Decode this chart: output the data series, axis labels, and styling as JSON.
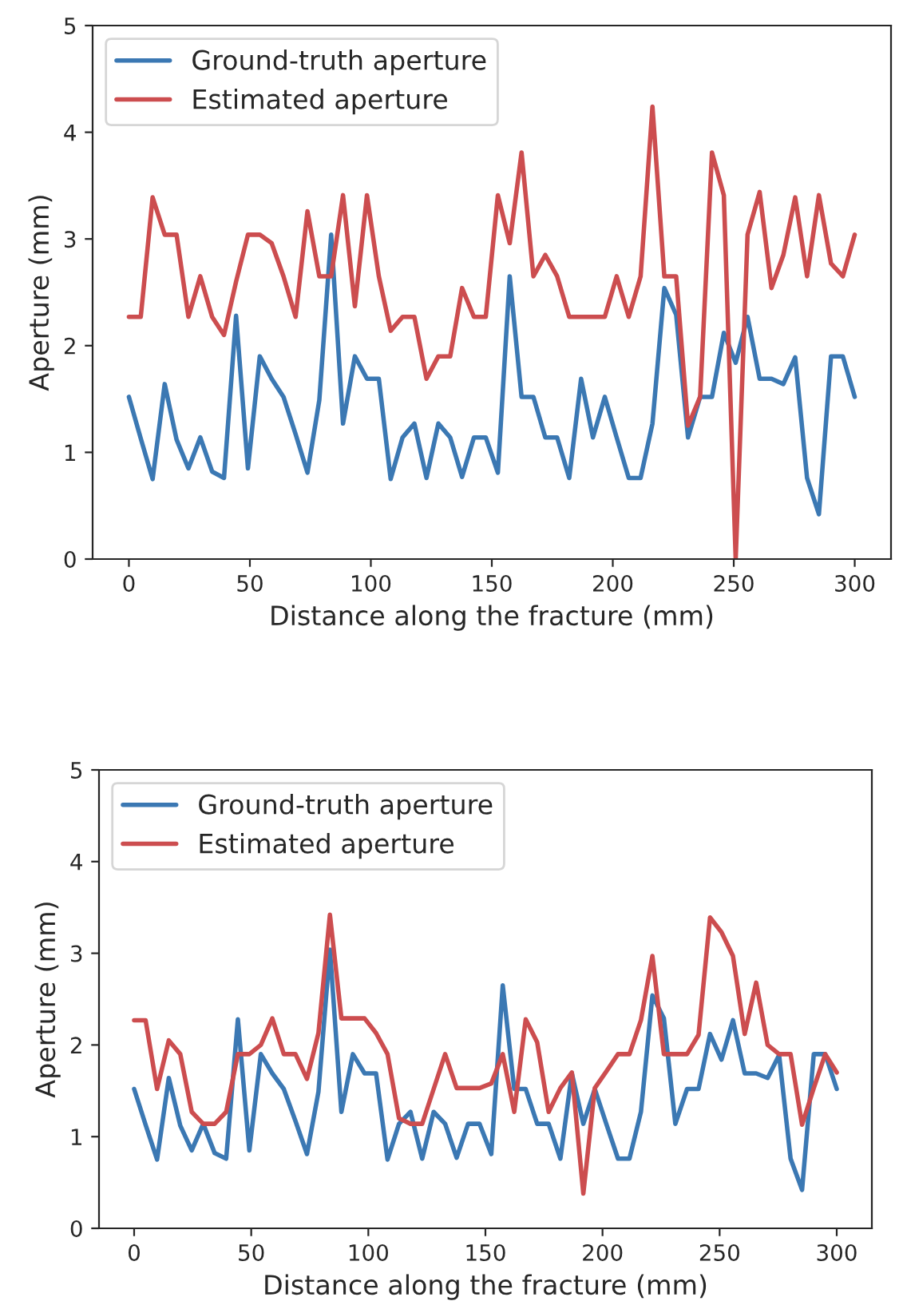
{
  "chart_data": [
    {
      "type": "line",
      "xlabel": "Distance along the fracture (mm)",
      "ylabel": "Aperture (mm)",
      "xlim": [
        -15,
        315
      ],
      "ylim": [
        0,
        5
      ],
      "xticks": [
        0,
        50,
        100,
        150,
        200,
        250,
        300
      ],
      "yticks": [
        0,
        1,
        2,
        3,
        4,
        5
      ],
      "grid": false,
      "legend": "top left",
      "line_style": "solid",
      "marker": "none",
      "x": [
        0,
        4.9,
        9.8,
        14.8,
        19.7,
        24.6,
        29.5,
        34.4,
        39.3,
        44.3,
        49.2,
        54.1,
        59.0,
        63.9,
        68.9,
        73.8,
        78.7,
        83.6,
        88.5,
        93.4,
        98.4,
        103.3,
        108.2,
        113.1,
        118.0,
        123.0,
        127.9,
        132.8,
        137.7,
        142.6,
        147.5,
        152.5,
        157.4,
        162.3,
        167.2,
        172.1,
        177.0,
        182.0,
        186.9,
        191.8,
        196.7,
        201.6,
        206.6,
        211.5,
        216.4,
        221.3,
        226.2,
        231.1,
        236.1,
        241.0,
        245.9,
        250.8,
        255.7,
        260.7,
        265.6,
        270.5,
        275.4,
        280.3,
        285.2,
        290.2,
        295.1,
        300
      ],
      "series": [
        {
          "name": "Ground-truth aperture",
          "color": "#3b78b3",
          "values": [
            1.52,
            1.13,
            0.75,
            1.64,
            1.12,
            0.85,
            1.14,
            0.82,
            0.76,
            2.28,
            0.85,
            1.9,
            1.69,
            1.52,
            1.17,
            0.81,
            1.49,
            3.04,
            1.27,
            1.9,
            1.69,
            1.69,
            0.75,
            1.14,
            1.27,
            0.76,
            1.27,
            1.14,
            0.77,
            1.14,
            1.14,
            0.81,
            2.65,
            1.52,
            1.52,
            1.14,
            1.14,
            0.76,
            1.69,
            1.14,
            1.52,
            1.14,
            0.76,
            0.76,
            1.27,
            2.54,
            2.29,
            1.14,
            1.52,
            1.52,
            2.12,
            1.84,
            2.27,
            1.69,
            1.69,
            1.64,
            1.89,
            0.76,
            0.42,
            1.9,
            1.9,
            1.52
          ]
        },
        {
          "name": "Estimated aperture",
          "color": "#cc4d4f",
          "values": [
            2.27,
            2.27,
            3.39,
            3.04,
            3.04,
            2.27,
            2.65,
            2.27,
            2.1,
            2.6,
            3.04,
            3.04,
            2.96,
            2.65,
            2.27,
            3.26,
            2.65,
            2.65,
            3.41,
            2.37,
            3.41,
            2.65,
            2.14,
            2.27,
            2.27,
            1.69,
            1.9,
            1.9,
            2.54,
            2.27,
            2.27,
            3.41,
            2.96,
            3.81,
            2.65,
            2.85,
            2.65,
            2.27,
            2.27,
            2.27,
            2.27,
            2.65,
            2.27,
            2.65,
            4.24,
            2.65,
            2.65,
            1.25,
            1.52,
            3.81,
            3.41,
            0,
            3.04,
            3.44,
            2.54,
            2.85,
            3.39,
            2.65,
            3.41,
            2.77,
            2.65,
            3.04
          ]
        }
      ]
    },
    {
      "type": "line",
      "xlabel": "Distance along the fracture (mm)",
      "ylabel": "Aperture (mm)",
      "xlim": [
        -15,
        315
      ],
      "ylim": [
        0,
        5
      ],
      "xticks": [
        0,
        50,
        100,
        150,
        200,
        250,
        300
      ],
      "yticks": [
        0,
        1,
        2,
        3,
        4,
        5
      ],
      "grid": false,
      "legend": "top left",
      "line_style": "solid",
      "marker": "none",
      "x": [
        0,
        4.9,
        9.8,
        14.8,
        19.7,
        24.6,
        29.5,
        34.4,
        39.3,
        44.3,
        49.2,
        54.1,
        59.0,
        63.9,
        68.9,
        73.8,
        78.7,
        83.6,
        88.5,
        93.4,
        98.4,
        103.3,
        108.2,
        113.1,
        118.0,
        123.0,
        127.9,
        132.8,
        137.7,
        142.6,
        147.5,
        152.5,
        157.4,
        162.3,
        167.2,
        172.1,
        177.0,
        182.0,
        186.9,
        191.8,
        196.7,
        201.6,
        206.6,
        211.5,
        216.4,
        221.3,
        226.2,
        231.1,
        236.1,
        241.0,
        245.9,
        250.8,
        255.7,
        260.7,
        265.6,
        270.5,
        275.4,
        280.3,
        285.2,
        290.2,
        295.1,
        300
      ],
      "series": [
        {
          "name": "Ground-truth aperture",
          "color": "#3b78b3",
          "values": [
            1.52,
            1.13,
            0.75,
            1.64,
            1.12,
            0.85,
            1.14,
            0.82,
            0.76,
            2.28,
            0.85,
            1.9,
            1.69,
            1.52,
            1.17,
            0.81,
            1.49,
            3.04,
            1.27,
            1.9,
            1.69,
            1.69,
            0.75,
            1.14,
            1.27,
            0.76,
            1.27,
            1.14,
            0.77,
            1.14,
            1.14,
            0.81,
            2.65,
            1.52,
            1.52,
            1.14,
            1.14,
            0.76,
            1.69,
            1.14,
            1.52,
            1.14,
            0.76,
            0.76,
            1.27,
            2.54,
            2.29,
            1.14,
            1.52,
            1.52,
            2.12,
            1.84,
            2.27,
            1.69,
            1.69,
            1.64,
            1.89,
            0.76,
            0.42,
            1.9,
            1.9,
            1.52
          ]
        },
        {
          "name": "Estimated aperture",
          "color": "#cc4d4f",
          "values": [
            2.27,
            2.27,
            1.52,
            2.05,
            1.9,
            1.27,
            1.14,
            1.14,
            1.27,
            1.9,
            1.9,
            2.0,
            2.29,
            1.9,
            1.9,
            1.63,
            2.13,
            3.42,
            2.29,
            2.29,
            2.29,
            2.13,
            1.9,
            1.2,
            1.14,
            1.14,
            1.52,
            1.9,
            1.53,
            1.53,
            1.53,
            1.58,
            1.9,
            1.27,
            2.28,
            2.03,
            1.27,
            1.53,
            1.7,
            0.38,
            1.53,
            1.71,
            1.9,
            1.9,
            2.27,
            2.97,
            1.9,
            1.9,
            1.9,
            2.11,
            3.39,
            3.23,
            2.97,
            2.12,
            2.68,
            2.0,
            1.9,
            1.9,
            1.13,
            1.53,
            1.9,
            1.7
          ]
        }
      ]
    }
  ]
}
